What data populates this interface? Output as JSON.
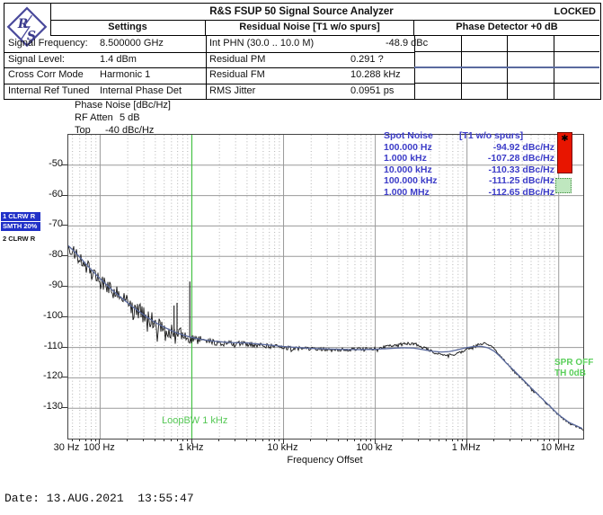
{
  "window": {
    "title": "R&S FSUP 50 Signal Source Analyzer",
    "status": "LOCKED"
  },
  "logo": {
    "letter_top": "R",
    "letter_bottom": "S",
    "color": "#4a4a9c"
  },
  "tables": {
    "settings": {
      "title": "Settings",
      "rows": [
        {
          "label": "Signal Frequency:",
          "value": "8.500000 GHz"
        },
        {
          "label": "Signal Level:",
          "value": "1.4 dBm"
        },
        {
          "label": "Cross Corr Mode",
          "value": "Harmonic 1"
        },
        {
          "label": "Internal Ref Tuned",
          "value": "Internal Phase Det"
        }
      ]
    },
    "residual": {
      "title": "Residual Noise [T1 w/o spurs]",
      "rows": [
        {
          "label": "Int PHN (30.0 .. 10.0 M)",
          "value": "-48.9 dBc"
        },
        {
          "label": "Residual PM",
          "value": "0.291 ?"
        },
        {
          "label": "Residual FM",
          "value": "10.288 kHz"
        },
        {
          "label": "RMS Jitter",
          "value": "0.0951 ps"
        }
      ]
    },
    "phase_detector": {
      "title": "Phase Detector +0 dB",
      "rows": 4,
      "cols": 4,
      "divider_color": "#5a6a9e"
    }
  },
  "chart_header": {
    "title": "Phase Noise [dBc/Hz]",
    "rf_atten_label": "RF Atten",
    "rf_atten_value": "5 dB",
    "top_label": "Top",
    "top_value": "-40 dBc/Hz"
  },
  "trace_legend": {
    "badge1": "1 CLRW R",
    "badge2": "SMTH 20%",
    "plain": "2 CLRW R",
    "badge_color": "#2030c8"
  },
  "spot_noise": {
    "header_left": "Spot Noise",
    "header_right": "[T1 w/o spurs]",
    "text_color": "#3c3cc8",
    "rows": [
      {
        "offset": "100.000 Hz",
        "level": "-94.92 dBc/Hz"
      },
      {
        "offset": "1.000 kHz",
        "level": "-107.28 dBc/Hz"
      },
      {
        "offset": "10.000 kHz",
        "level": "-110.33 dBc/Hz"
      },
      {
        "offset": "100.000 kHz",
        "level": "-111.25 dBc/Hz"
      },
      {
        "offset": "1.000 MHz",
        "level": "-112.65 dBc/Hz"
      }
    ]
  },
  "annotations": {
    "loop_bw": "LoopBW 1 kHz",
    "spr_off": "SPR OFF",
    "threshold": "TH 0dB",
    "green": "#46c246"
  },
  "indicators": {
    "spur_marker_glyph": "✱",
    "spur_marker_color": "#e81500",
    "threshold_box_color": "#bfe7bf"
  },
  "axis": {
    "x_label": "Frequency Offset",
    "x_ticks": [
      "30 Hz",
      "100 Hz",
      "1 kHz",
      "10 kHz",
      "100 kHz",
      "1 MHz",
      "10 MHz"
    ],
    "y_ticks": [
      "-50",
      "-60",
      "-70",
      "-80",
      "-90",
      "-100",
      "-110",
      "-120",
      "-130"
    ]
  },
  "footer": {
    "date_line": "Date: 13.AUG.2021  13:55:47"
  },
  "chart_data": {
    "type": "line",
    "title": "Phase Noise [dBc/Hz]",
    "xlabel": "Frequency Offset",
    "ylabel": "dBc/Hz",
    "ylim": [
      -140,
      -40
    ],
    "xlim_hz": [
      45,
      18500000
    ],
    "x_decades_hz": [
      100,
      1000,
      10000,
      100000,
      1000000,
      10000000
    ],
    "grid": true,
    "loop_bw_hz": 1000,
    "spot_noise": [
      [
        100,
        -94.92
      ],
      [
        1000,
        -107.28
      ],
      [
        10000,
        -110.33
      ],
      [
        100000,
        -111.25
      ],
      [
        1000000,
        -112.65
      ]
    ],
    "series": [
      {
        "name": "Trace 1 CLRW smoothed 20%",
        "color": "#5a6a9e",
        "points": [
          [
            45,
            -76.5
          ],
          [
            55,
            -79
          ],
          [
            70,
            -82.5
          ],
          [
            90,
            -86
          ],
          [
            110,
            -88.5
          ],
          [
            140,
            -91.5
          ],
          [
            180,
            -94.2
          ],
          [
            230,
            -96.8
          ],
          [
            300,
            -99.3
          ],
          [
            400,
            -101.8
          ],
          [
            520,
            -103.6
          ],
          [
            650,
            -104.9
          ],
          [
            800,
            -105.9
          ],
          [
            1000,
            -106.7
          ],
          [
            1300,
            -107.4
          ],
          [
            1700,
            -107.9
          ],
          [
            2200,
            -108.2
          ],
          [
            3000,
            -108.45
          ],
          [
            4000,
            -108.5
          ],
          [
            5500,
            -108.9
          ],
          [
            7500,
            -109.3
          ],
          [
            10000,
            -109.7
          ],
          [
            14000,
            -110.0
          ],
          [
            20000,
            -110.3
          ],
          [
            30000,
            -110.5
          ],
          [
            45000,
            -110.65
          ],
          [
            70000,
            -110.7
          ],
          [
            100000,
            -110.6
          ],
          [
            140000,
            -110.35
          ],
          [
            200000,
            -110.1
          ],
          [
            260000,
            -110.2
          ],
          [
            330000,
            -110.7
          ],
          [
            420000,
            -111.25
          ],
          [
            520000,
            -111.5
          ],
          [
            640000,
            -111.35
          ],
          [
            780000,
            -110.8
          ],
          [
            950000,
            -110.15
          ],
          [
            1150000,
            -109.75
          ],
          [
            1400000,
            -109.6
          ],
          [
            1700000,
            -110.1
          ],
          [
            2000000,
            -111.3
          ],
          [
            2300000,
            -113
          ],
          [
            2700000,
            -115.2
          ],
          [
            3200000,
            -117.4
          ],
          [
            4000000,
            -120.3
          ],
          [
            5000000,
            -123.3
          ],
          [
            6300000,
            -126.3
          ],
          [
            8000000,
            -129.3
          ],
          [
            10000000,
            -132.2
          ],
          [
            13000000,
            -134.7
          ],
          [
            18500000,
            -136.8
          ]
        ]
      },
      {
        "name": "Trace 2 CLRW raw",
        "color": "#161616",
        "points": [
          [
            45,
            -77
          ],
          [
            55,
            -79.5
          ],
          [
            70,
            -83
          ],
          [
            90,
            -86.5
          ],
          [
            110,
            -89
          ],
          [
            140,
            -92
          ],
          [
            180,
            -94.5
          ],
          [
            230,
            -97
          ],
          [
            300,
            -99.5
          ],
          [
            400,
            -102
          ],
          [
            520,
            -104
          ],
          [
            650,
            -105
          ],
          [
            800,
            -106
          ],
          [
            1000,
            -107
          ],
          [
            1300,
            -107.8
          ],
          [
            1700,
            -108.3
          ],
          [
            2200,
            -108.6
          ],
          [
            3000,
            -108.8
          ],
          [
            4000,
            -108.8
          ],
          [
            5500,
            -109.2
          ],
          [
            7500,
            -109.6
          ],
          [
            10000,
            -110
          ],
          [
            14000,
            -110.3
          ],
          [
            20000,
            -110.5
          ],
          [
            30000,
            -110.6
          ],
          [
            45000,
            -110.7
          ],
          [
            70000,
            -110.6
          ],
          [
            100000,
            -110.3
          ],
          [
            140000,
            -109.6
          ],
          [
            200000,
            -108.9
          ],
          [
            250000,
            -108.7
          ],
          [
            300000,
            -109.2
          ],
          [
            360000,
            -110.4
          ],
          [
            430000,
            -111.6
          ],
          [
            520000,
            -112.3
          ],
          [
            620000,
            -112.5
          ],
          [
            730000,
            -112.2
          ],
          [
            850000,
            -111.6
          ],
          [
            1000000,
            -110.7
          ],
          [
            1150000,
            -109.8
          ],
          [
            1350000,
            -109
          ],
          [
            1550000,
            -108.7
          ],
          [
            1750000,
            -109
          ],
          [
            1950000,
            -110.1
          ],
          [
            2200000,
            -112
          ],
          [
            2600000,
            -114.6
          ],
          [
            3200000,
            -117.5
          ],
          [
            4000000,
            -120.4
          ],
          [
            5000000,
            -123.4
          ],
          [
            6300000,
            -126.4
          ],
          [
            8000000,
            -129.4
          ],
          [
            10000000,
            -132.3
          ],
          [
            13000000,
            -135
          ],
          [
            18500000,
            -137
          ]
        ],
        "noise_profile": [
          [
            60,
            2.2
          ],
          [
            120,
            3.0
          ],
          [
            250,
            3.2
          ],
          [
            500,
            2.6
          ],
          [
            900,
            2.0
          ],
          [
            1500,
            1.1
          ],
          [
            3000,
            0.9
          ],
          [
            8000,
            0.75
          ],
          [
            20000,
            0.6
          ],
          [
            60000,
            0.55
          ],
          [
            150000,
            0.5
          ],
          [
            400000,
            0.45
          ],
          [
            1000000,
            0.4
          ],
          [
            2000000,
            0.35
          ],
          [
            20000000,
            0.3
          ]
        ],
        "spurs": [
          [
            385,
            -102.5
          ],
          [
            640,
            -96.2
          ],
          [
            690,
            -95.3
          ],
          [
            950,
            -88.3
          ]
        ]
      }
    ]
  }
}
